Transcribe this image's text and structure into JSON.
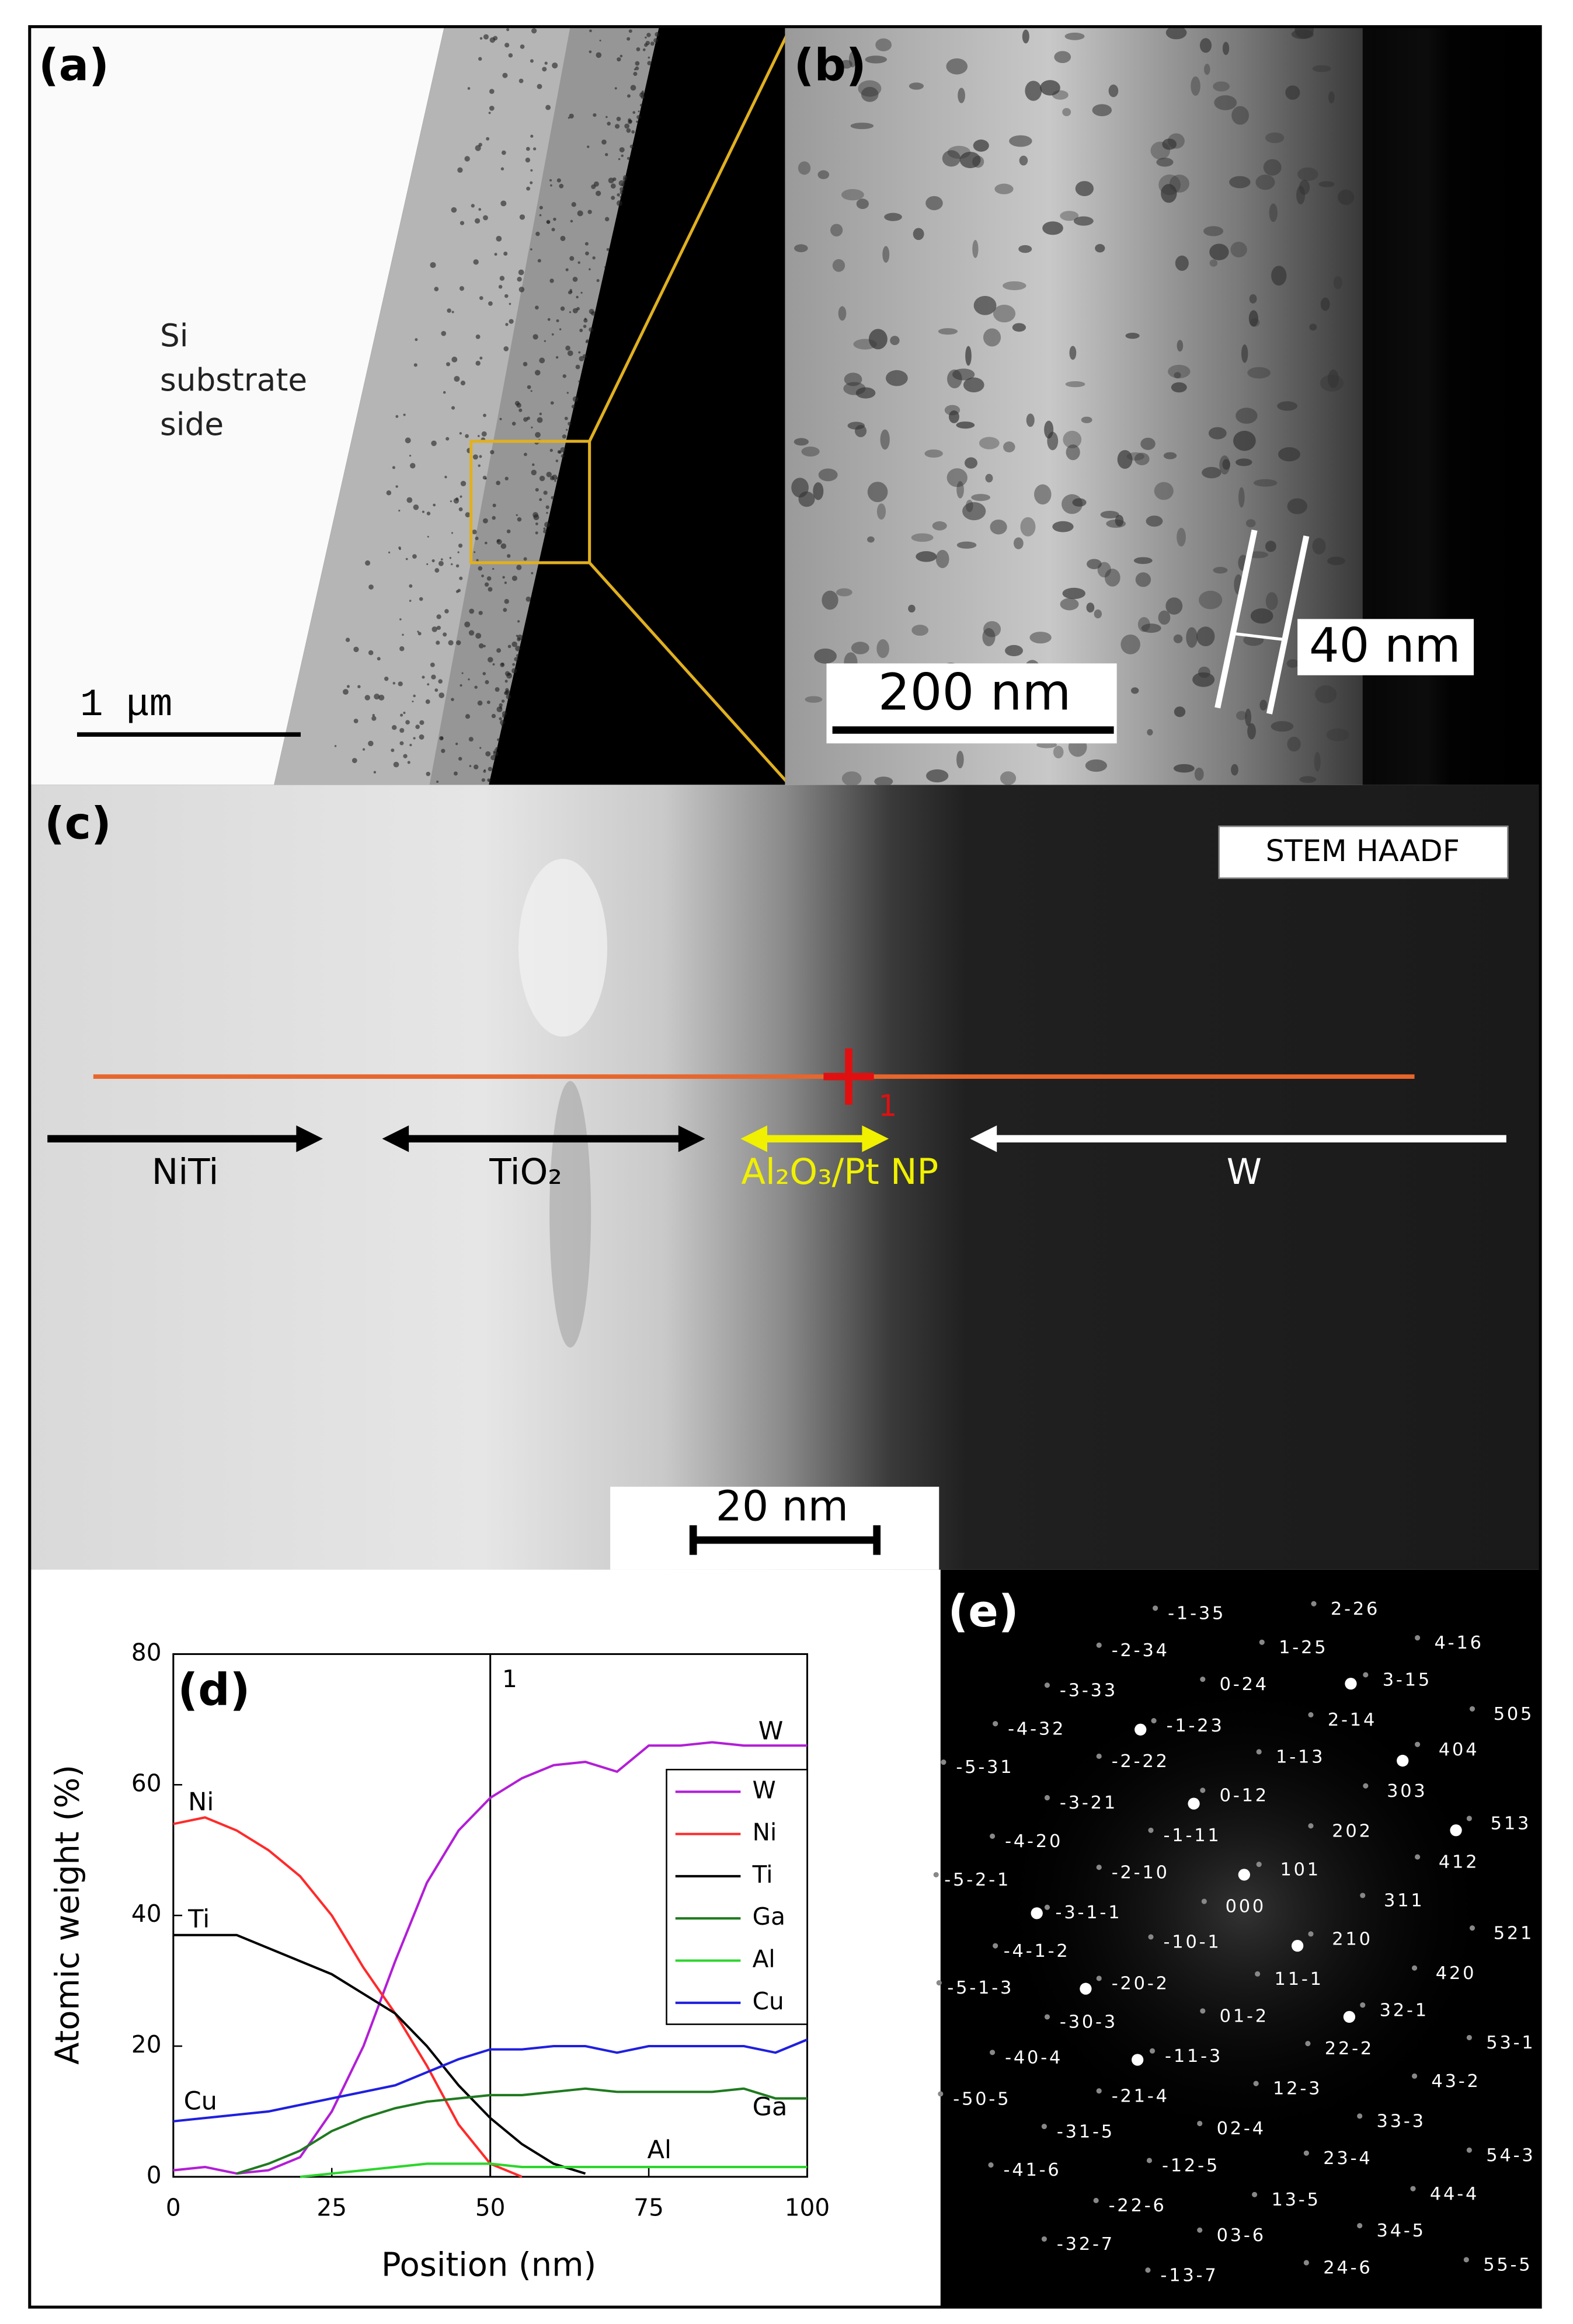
{
  "panels": {
    "a": {
      "label": "(a)",
      "side_text": [
        "Si",
        "substrate",
        "side"
      ],
      "scale_bar": "1 μm"
    },
    "b": {
      "label": "(b)",
      "scale_bar": "200 nm",
      "thickness": "40 nm"
    },
    "c": {
      "label": "(c)",
      "mode": "STEM HAADF",
      "point": "1",
      "scale_bar": "20 nm",
      "regions": [
        "NiTi",
        "TiO₂",
        "Al₂O₃/Pt NP",
        "W"
      ]
    },
    "e": {
      "label": "(e)",
      "reflections": [
        "-1-35",
        "2-26",
        "-2-34",
        "1-25",
        "4-16",
        "-3-33",
        "0-24",
        "3-15",
        "505",
        "-4-32",
        "-1-23",
        "2-14",
        "-5-31",
        "-2-22",
        "1-13",
        "404",
        "303",
        "-3-21",
        "0-12",
        "513",
        "202",
        "-1-11",
        "412",
        "-4-20",
        "101",
        "-5-2-1",
        "-2-10",
        "000",
        "311",
        "-3-1-1",
        "521",
        "-4-1-2",
        "-10-1",
        "210",
        "420",
        "-5-1-3",
        "11-1",
        "-20-2",
        "32-1",
        "-30-3",
        "01-2",
        "53-1",
        "22-2",
        "-40-4",
        "-11-3",
        "43-2",
        "-50-5",
        "-21-4",
        "12-3",
        "33-3",
        "-31-5",
        "02-4",
        "54-3",
        "23-4",
        "-12-5",
        "-41-6",
        "44-4",
        "13-5",
        "-22-6",
        "34-5",
        "03-6",
        "-32-7",
        "55-5",
        "24-6",
        "-13-7"
      ]
    }
  },
  "chart_data": {
    "type": "line",
    "label": "(d)",
    "x_label": "Position (nm)",
    "y_label": "Atomic weight (%)",
    "x": [
      0,
      5,
      10,
      15,
      20,
      25,
      30,
      35,
      40,
      45,
      50,
      55,
      60,
      65,
      70,
      75,
      80,
      85,
      90,
      95,
      100
    ],
    "series": [
      {
        "name": "W",
        "color": "#b21ed6",
        "values": [
          1,
          1.5,
          0.5,
          1,
          3,
          10,
          20,
          33,
          45,
          53,
          58,
          61,
          63,
          63.5,
          62,
          66,
          66,
          66.5,
          66,
          66,
          66
        ]
      },
      {
        "name": "Ni",
        "color": "#ff2a2a",
        "values": [
          54,
          55,
          53,
          50,
          46,
          40,
          32,
          25,
          17,
          8,
          2,
          0,
          null,
          null,
          null,
          null,
          null,
          null,
          null,
          null,
          null
        ]
      },
      {
        "name": "Ti",
        "color": "#000000",
        "values": [
          37,
          37,
          37,
          35,
          33,
          31,
          28,
          25,
          20,
          14,
          9,
          5,
          2,
          0.5,
          null,
          null,
          null,
          null,
          null,
          null,
          null
        ]
      },
      {
        "name": "Ga",
        "color": "#1f7a1f",
        "values": [
          null,
          null,
          0.5,
          2,
          4,
          7,
          9,
          10.5,
          11.5,
          12,
          12.5,
          12.5,
          13,
          13.5,
          13,
          13,
          13,
          13,
          13.5,
          12,
          12
        ]
      },
      {
        "name": "Al",
        "color": "#2bd62b",
        "values": [
          null,
          null,
          null,
          null,
          0,
          0.5,
          1,
          1.5,
          2,
          2,
          2,
          1.5,
          1.5,
          1.5,
          1.5,
          1.5,
          1.5,
          1.5,
          1.5,
          1.5,
          1.5
        ]
      },
      {
        "name": "Cu",
        "color": "#1f1fe0",
        "values": [
          8.5,
          9,
          9.5,
          10,
          11,
          12,
          13,
          14,
          16,
          18,
          19.5,
          19.5,
          20,
          20,
          19,
          20,
          20,
          20,
          20,
          19,
          21
        ]
      }
    ],
    "annotations": [
      "W",
      "Ni",
      "Ti",
      "Cu",
      "Ga",
      "Al"
    ],
    "marker": {
      "x": 50,
      "label": "1"
    },
    "xlim": [
      0,
      100
    ],
    "ylim": [
      0,
      80
    ],
    "xticks": [
      0,
      25,
      50,
      75,
      100
    ],
    "yticks": [
      0,
      20,
      40,
      60,
      80
    ],
    "grid": false
  }
}
